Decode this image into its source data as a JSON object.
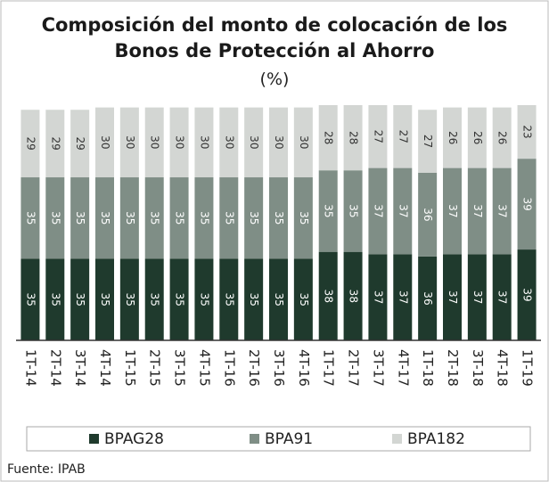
{
  "chart_data": {
    "type": "stacked_bar",
    "title": "Composición del monto de colocación de los Bonos de Protección al Ahorro",
    "subtitle": "(%)",
    "source": "Fuente: IPAB",
    "categories": [
      "1T-14",
      "2T-14",
      "3T-14",
      "4T-14",
      "1T-15",
      "2T-15",
      "3T-15",
      "4T-15",
      "1T-16",
      "2T-16",
      "3T-16",
      "4T-16",
      "1T-17",
      "2T-17",
      "3T-17",
      "4T-17",
      "1T-18",
      "2T-18",
      "3T-18",
      "4T-18",
      "1T-19"
    ],
    "series": [
      {
        "name": "BPAG28",
        "color": "#1f3a2d",
        "values": [
          35,
          35,
          35,
          35,
          35,
          35,
          35,
          35,
          35,
          35,
          35,
          35,
          38,
          38,
          37,
          37,
          36,
          37,
          37,
          37,
          39
        ]
      },
      {
        "name": "BPA91",
        "color": "#7f8e86",
        "values": [
          35,
          35,
          35,
          35,
          35,
          35,
          35,
          35,
          35,
          35,
          35,
          35,
          35,
          35,
          37,
          37,
          36,
          37,
          37,
          37,
          39
        ]
      },
      {
        "name": "BPA182",
        "color": "#d3d6d3",
        "values": [
          29,
          29,
          29,
          30,
          30,
          30,
          30,
          30,
          30,
          30,
          30,
          30,
          28,
          28,
          27,
          27,
          27,
          26,
          26,
          26,
          23
        ]
      }
    ],
    "ylim": [
      0,
      101
    ]
  }
}
